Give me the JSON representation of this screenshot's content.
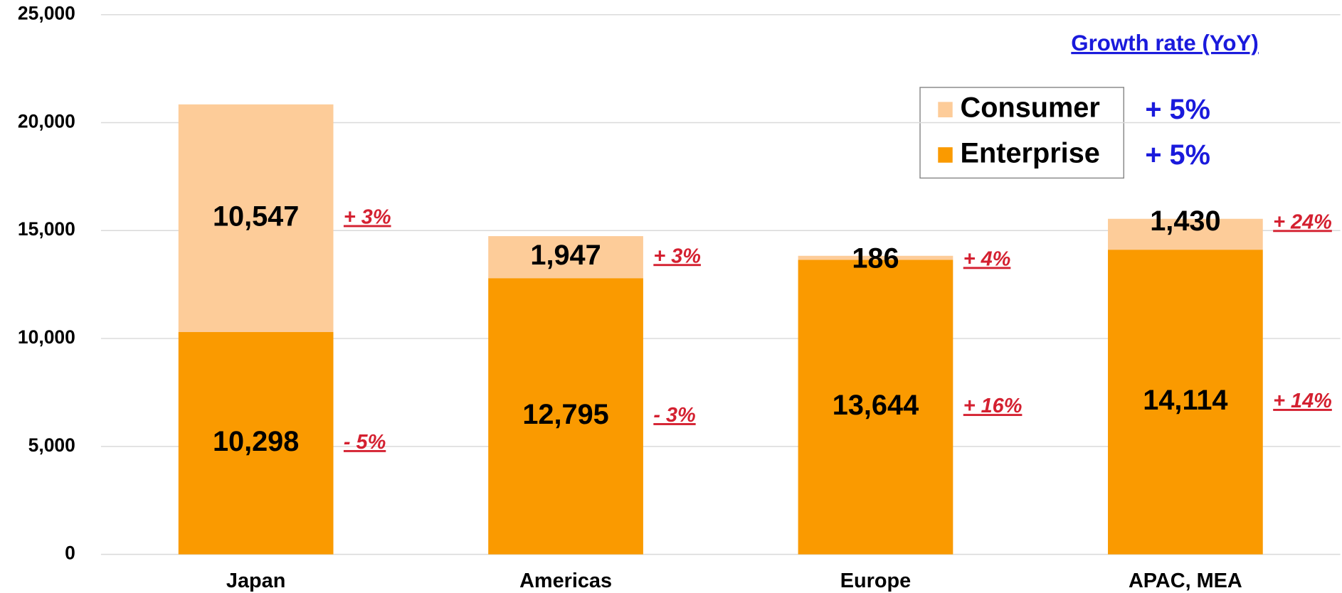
{
  "chart_data": {
    "type": "stacked_bar",
    "categories": [
      "Japan",
      "Americas",
      "Europe",
      "APAC, MEA"
    ],
    "series": [
      {
        "name": "Enterprise",
        "color": "#fa9a00",
        "values": [
          10298,
          12795,
          13644,
          14114
        ],
        "value_labels": [
          "10,298",
          "12,795",
          "13,644",
          "14,114"
        ],
        "growth": [
          "- 5%",
          "- 3%",
          "+ 16%",
          "+ 14%"
        ],
        "total_growth": "+ 5%"
      },
      {
        "name": "Consumer",
        "color": "#fdcc99",
        "values": [
          10547,
          1947,
          186,
          1430
        ],
        "value_labels": [
          "10,547",
          "1,947",
          "186",
          "1,430"
        ],
        "growth": [
          "+ 3%",
          "+ 3%",
          "+ 4%",
          "+ 24%"
        ],
        "total_growth": "+ 5%"
      }
    ],
    "growth_title": "Growth rate (YoY)",
    "ylim": [
      0,
      25000
    ],
    "yticks": [
      0,
      {
        "value": 5000,
        "label": "5,000"
      },
      {
        "value": 10000,
        "label": "10,000"
      },
      {
        "value": 15000,
        "label": "15,000"
      },
      {
        "value": 20000,
        "label": "20,000"
      },
      {
        "value": 25000,
        "label": "25,000"
      }
    ],
    "grid": true
  }
}
